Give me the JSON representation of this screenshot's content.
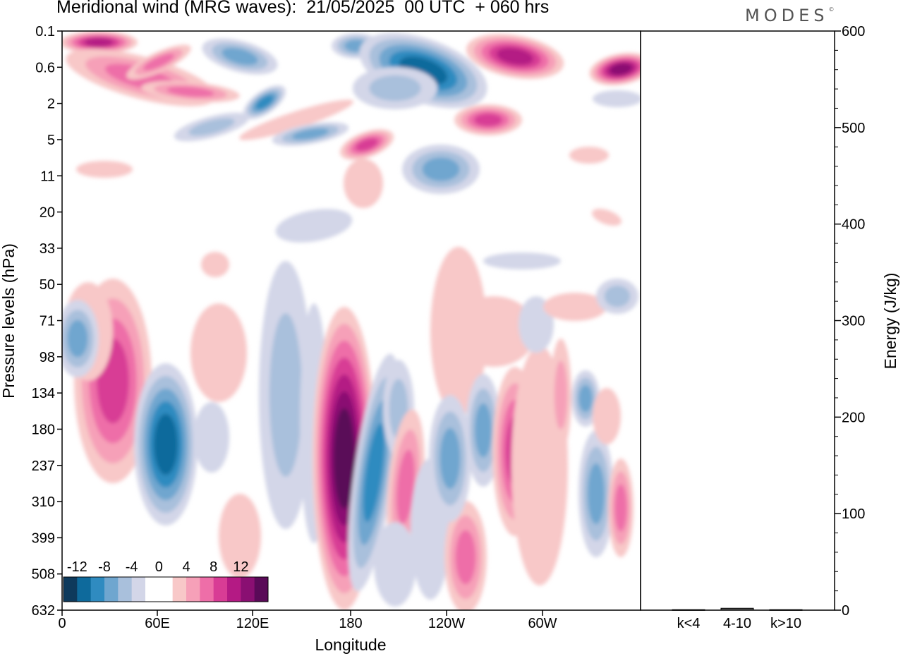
{
  "header": {
    "title": "Meridional wind (MRG waves):  21/05/2025  00 UTC  + 060 hrs",
    "brand": "MODES",
    "brand_mark": "©"
  },
  "chart_data": [
    {
      "type": "heatmap",
      "xlabel": "Longitude",
      "ylabel": "Pressure levels (hPa)",
      "x_ticks": [
        "0",
        "60E",
        "120E",
        "180",
        "120W",
        "60W"
      ],
      "y_ticks": [
        "0.1",
        "0.6",
        "2",
        "5",
        "11",
        "20",
        "33",
        "50",
        "71",
        "98",
        "134",
        "180",
        "237",
        "310",
        "399",
        "508",
        "632"
      ],
      "colorbar": {
        "labels": [
          "-12",
          "-8",
          "-4",
          "0",
          "4",
          "8",
          "12"
        ],
        "colors": [
          "#0e3a5c",
          "#0e6a9c",
          "#2f8bc0",
          "#6fa6cf",
          "#a9c0dc",
          "#d3d6e8",
          "#ffffff",
          "#ffffff",
          "#f8c8c8",
          "#f6a0b8",
          "#ee6ea8",
          "#d83c95",
          "#b41a84",
          "#8a0f72",
          "#5a0a58"
        ]
      }
    },
    {
      "type": "bar",
      "categories": [
        "k<4",
        "4-10",
        "k>10"
      ],
      "values": [
        0.5,
        2,
        0.5
      ],
      "ylabel": "Energy (J/kg)",
      "y_ticks": [
        "0",
        "100",
        "200",
        "300",
        "400",
        "500",
        "600"
      ],
      "ylim": [
        0,
        600
      ]
    }
  ]
}
